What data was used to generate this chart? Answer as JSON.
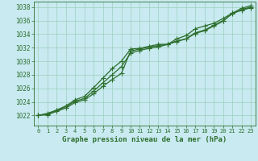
{
  "x": [
    0,
    1,
    2,
    3,
    4,
    5,
    6,
    7,
    8,
    9,
    10,
    11,
    12,
    13,
    14,
    15,
    16,
    17,
    18,
    19,
    20,
    21,
    22,
    23
  ],
  "line1": [
    1022.0,
    1022.1,
    1022.6,
    1023.1,
    1023.9,
    1024.3,
    1025.2,
    1026.3,
    1027.3,
    1028.2,
    1031.5,
    1031.8,
    1032.1,
    1032.3,
    1032.5,
    1033.0,
    1033.3,
    1034.1,
    1034.5,
    1035.2,
    1035.9,
    1037.1,
    1037.8,
    1038.2
  ],
  "line2": [
    1022.0,
    1022.2,
    1022.7,
    1023.3,
    1024.1,
    1024.5,
    1025.6,
    1026.8,
    1028.0,
    1029.2,
    1031.2,
    1031.6,
    1031.9,
    1032.1,
    1032.5,
    1032.9,
    1033.3,
    1034.2,
    1034.6,
    1035.3,
    1036.0,
    1037.0,
    1037.6,
    1038.0
  ],
  "line3": [
    1022.0,
    1022.3,
    1022.8,
    1023.4,
    1024.3,
    1024.8,
    1026.1,
    1027.5,
    1028.9,
    1030.0,
    1031.8,
    1031.9,
    1032.2,
    1032.5,
    1032.5,
    1033.3,
    1033.8,
    1034.8,
    1035.2,
    1035.6,
    1036.3,
    1037.1,
    1037.5,
    1037.9
  ],
  "ylim_min": 1020.5,
  "ylim_max": 1038.8,
  "yticks": [
    1022,
    1024,
    1026,
    1028,
    1030,
    1032,
    1034,
    1036,
    1038
  ],
  "xticks": [
    0,
    1,
    2,
    3,
    4,
    5,
    6,
    7,
    8,
    9,
    10,
    11,
    12,
    13,
    14,
    15,
    16,
    17,
    18,
    19,
    20,
    21,
    22,
    23
  ],
  "xlabel": "Graphe pression niveau de la mer (hPa)",
  "line_color": "#2d6e2d",
  "marker": "+",
  "bg_color": "#c8eaf0",
  "grid_color": "#9ecfbe",
  "fig_bg": "#c8eaf0",
  "tick_color": "#2d6e2d",
  "marker_size": 4,
  "line_width": 0.9
}
